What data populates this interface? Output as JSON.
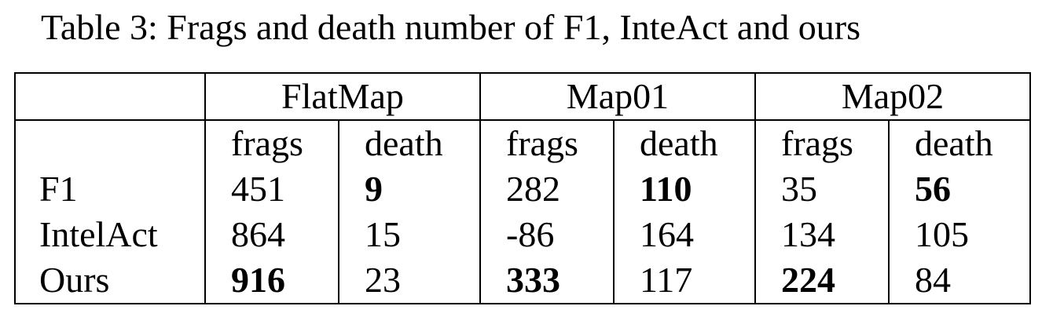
{
  "caption": "Table 3: Frags and death number of F1, InteAct and ours",
  "table": {
    "groups": [
      "FlatMap",
      "Map01",
      "Map02"
    ],
    "subheaders": [
      "frags",
      "death",
      "frags",
      "death",
      "frags",
      "death"
    ],
    "rows": [
      {
        "label": "F1",
        "values": [
          "451",
          "9",
          "282",
          "110",
          "35",
          "56"
        ]
      },
      {
        "label": "IntelAct",
        "values": [
          "864",
          "15",
          "-86",
          "164",
          "134",
          "105"
        ]
      },
      {
        "label": "Ours",
        "values": [
          "916",
          "23",
          "333",
          "117",
          "224",
          "84"
        ]
      }
    ]
  }
}
